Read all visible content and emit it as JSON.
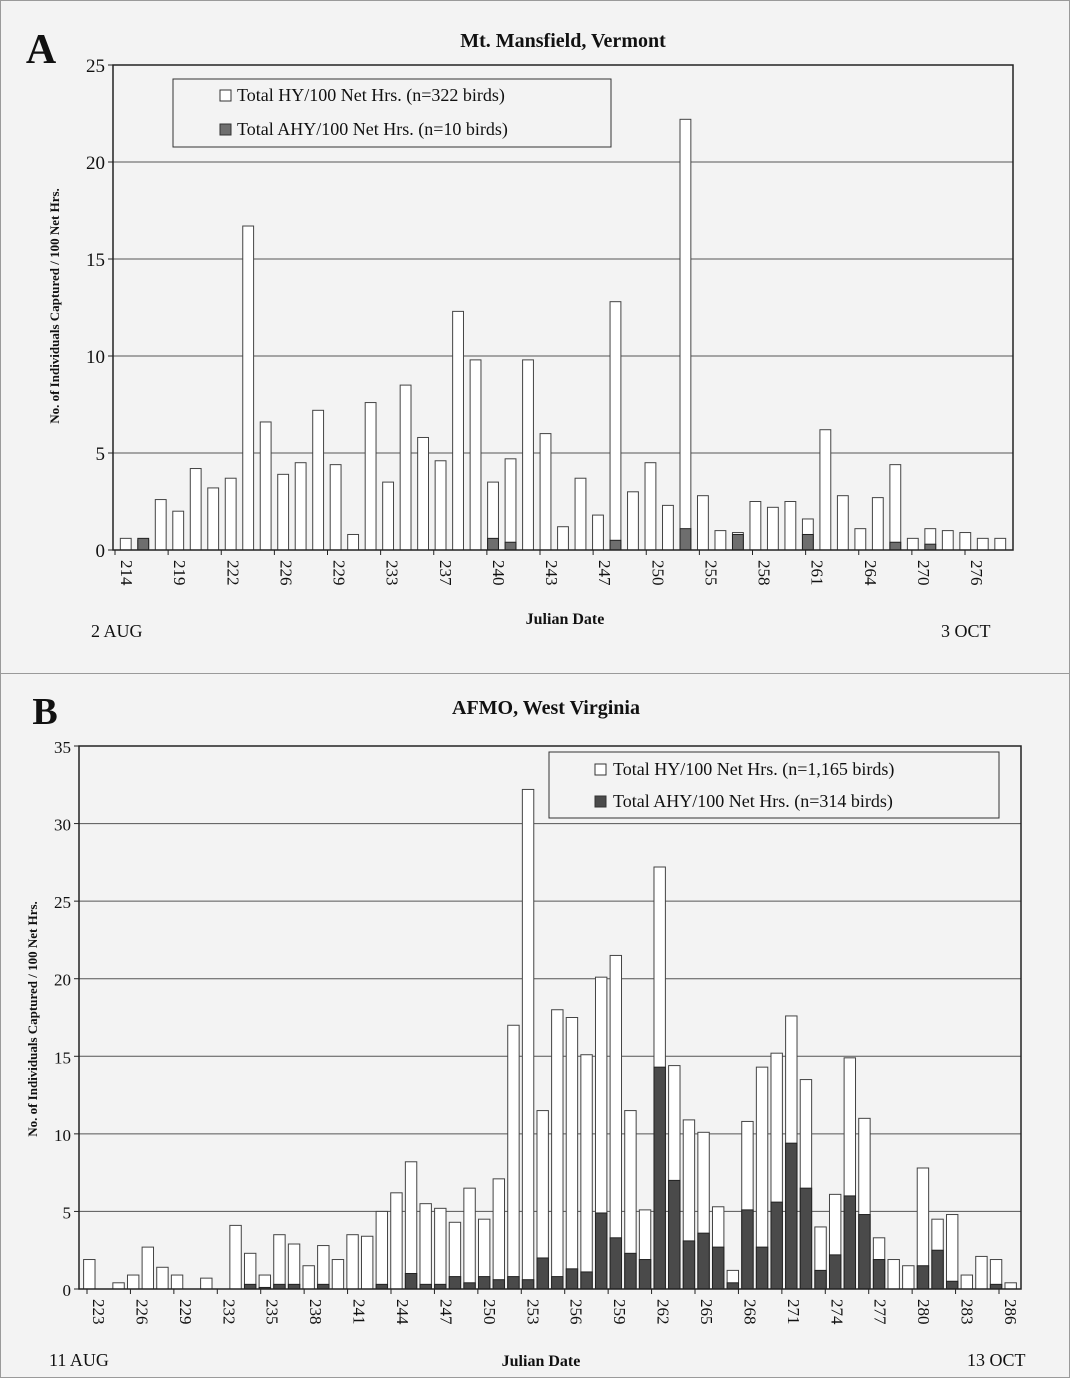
{
  "chart_data": [
    {
      "type": "bar",
      "panel_label": "A",
      "title": "Mt. Mansfield, Vermont",
      "xlabel": "Julian Date",
      "ylabel": "No. of Individuals Captured / 100 Net Hrs.",
      "ylim": [
        0,
        25
      ],
      "yticks": [
        0,
        5,
        10,
        15,
        20,
        25
      ],
      "xtick_labels": [
        "214",
        "219",
        "222",
        "226",
        "229",
        "233",
        "237",
        "240",
        "243",
        "247",
        "250",
        "255",
        "258",
        "261",
        "264",
        "270",
        "276"
      ],
      "start_date_label": "2 AUG",
      "end_date_label": "3 OCT",
      "grid": true,
      "legend_position": "top-left",
      "series": [
        {
          "name": "Total HY/100 Net Hrs. (n=322 birds)",
          "color": "#ffffff",
          "values": [
            0.6,
            0.5,
            2.6,
            2.0,
            4.2,
            3.2,
            3.7,
            16.7,
            6.6,
            3.9,
            4.5,
            7.2,
            4.4,
            0.8,
            7.6,
            3.5,
            8.5,
            5.8,
            4.6,
            12.3,
            9.8,
            3.5,
            4.7,
            9.8,
            6.0,
            1.2,
            3.7,
            1.8,
            12.8,
            3.0,
            4.5,
            2.3,
            22.2,
            2.8,
            1.0,
            0.9,
            2.5,
            2.2,
            2.5,
            1.6,
            6.2,
            2.8,
            1.1,
            2.7,
            4.4,
            0.6,
            1.1,
            1.0,
            0.9,
            0.6,
            0.6
          ]
        },
        {
          "name": "Total AHY/100 Net Hrs. (n=10 birds)",
          "color": "#6e6e6e",
          "values": [
            0,
            0.6,
            0,
            0,
            0,
            0,
            0,
            0,
            0,
            0,
            0,
            0,
            0,
            0,
            0,
            0,
            0,
            0,
            0,
            0,
            0,
            0.6,
            0.4,
            0,
            0,
            0,
            0,
            0,
            0.5,
            0,
            0,
            0,
            1.1,
            0,
            0,
            0.8,
            0,
            0,
            0,
            0.8,
            0,
            0,
            0,
            0,
            0.4,
            0,
            0.3,
            0,
            0,
            0,
            0
          ]
        }
      ]
    },
    {
      "type": "bar",
      "panel_label": "B",
      "title": "AFMO, West Virginia",
      "xlabel": "Julian Date",
      "ylabel": "No. of Individuals Captured / 100 Net Hrs.",
      "ylim": [
        0,
        35
      ],
      "yticks": [
        0,
        5,
        10,
        15,
        20,
        25,
        30,
        35
      ],
      "xtick_labels": [
        "223",
        "226",
        "229",
        "232",
        "235",
        "238",
        "241",
        "244",
        "247",
        "250",
        "253",
        "256",
        "259",
        "262",
        "265",
        "268",
        "271",
        "274",
        "277",
        "280",
        "283",
        "286"
      ],
      "start_date_label": "11 AUG",
      "end_date_label": "13 OCT",
      "grid": true,
      "legend_position": "top-right",
      "series": [
        {
          "name": "Total HY/100 Net Hrs. (n=1,165 birds)",
          "color": "#ffffff",
          "values": [
            1.9,
            0,
            0.4,
            0.9,
            2.7,
            1.4,
            0.9,
            0,
            0.7,
            0,
            4.1,
            2.3,
            0.9,
            3.5,
            2.9,
            1.5,
            2.8,
            1.9,
            3.5,
            3.4,
            5.0,
            6.2,
            8.2,
            5.5,
            5.2,
            4.3,
            6.5,
            4.5,
            7.1,
            17.0,
            32.2,
            11.5,
            18.0,
            17.5,
            15.1,
            20.1,
            21.5,
            11.5,
            5.1,
            27.2,
            14.4,
            10.9,
            10.1,
            5.3,
            1.2,
            10.8,
            14.3,
            15.2,
            17.6,
            13.5,
            4.0,
            6.1,
            14.9,
            11.0,
            3.3,
            1.9,
            1.5,
            7.8,
            4.5,
            4.8,
            0.9,
            2.1,
            1.9,
            0.4
          ]
        },
        {
          "name": "Total AHY/100 Net Hrs. (n=314 birds)",
          "color": "#4a4a4a",
          "values": [
            0,
            0,
            0,
            0,
            0,
            0,
            0,
            0,
            0,
            0,
            0,
            0.3,
            0.1,
            0.3,
            0.3,
            0,
            0.3,
            0,
            0,
            0,
            0.3,
            0,
            1.0,
            0.3,
            0.3,
            0.8,
            0.4,
            0.8,
            0.6,
            0.8,
            0.6,
            2.0,
            0.8,
            1.3,
            1.1,
            4.9,
            3.3,
            2.3,
            1.9,
            14.3,
            7.0,
            3.1,
            3.6,
            2.7,
            0.4,
            5.1,
            2.7,
            5.6,
            9.4,
            6.5,
            1.2,
            2.2,
            6.0,
            4.8,
            1.9,
            0,
            0,
            1.5,
            2.5,
            0.5,
            0,
            0,
            0.3,
            0
          ]
        }
      ]
    }
  ]
}
